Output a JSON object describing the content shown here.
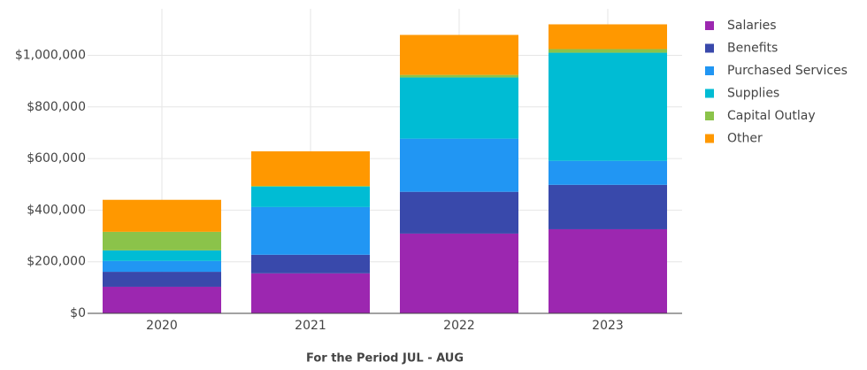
{
  "chart_data": {
    "type": "stacked_bar",
    "x_label": "For the Period JUL - AUG",
    "categories": [
      "2020",
      "2021",
      "2022",
      "2023"
    ],
    "series": [
      {
        "name": "Salaries",
        "color": "#9c27b0",
        "values": [
          103000,
          155000,
          309000,
          326000
        ]
      },
      {
        "name": "Benefits",
        "color": "#3949ab",
        "values": [
          58000,
          72000,
          162000,
          172000
        ]
      },
      {
        "name": "Purchased Services",
        "color": "#2196f3",
        "values": [
          42000,
          185000,
          206000,
          93000
        ]
      },
      {
        "name": "Supplies",
        "color": "#00bcd4",
        "values": [
          41000,
          79000,
          237000,
          419000
        ]
      },
      {
        "name": "Capital Outlay",
        "color": "#8bc34a",
        "values": [
          72000,
          3000,
          10000,
          14000
        ]
      },
      {
        "name": "Other",
        "color": "#ff9800",
        "values": [
          124000,
          134000,
          155000,
          96000
        ]
      }
    ],
    "ylim": [
      0,
      1180000
    ],
    "yticks": [
      {
        "value": 0,
        "label": "$0"
      },
      {
        "value": 200000,
        "label": "$200,000"
      },
      {
        "value": 400000,
        "label": "$400,000"
      },
      {
        "value": 600000,
        "label": "$600,000"
      },
      {
        "value": 800000,
        "label": "$800,000"
      },
      {
        "value": 1000000,
        "label": "$1,000,000"
      }
    ],
    "grid": true,
    "legend": "right"
  }
}
